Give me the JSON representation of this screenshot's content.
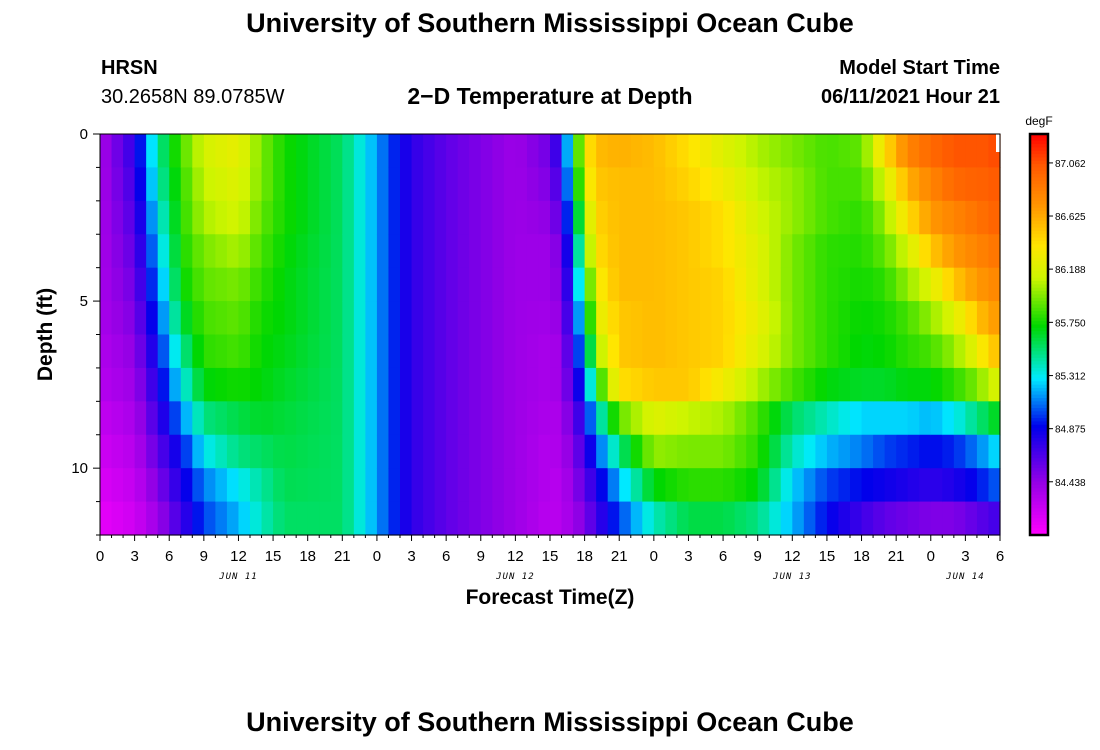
{
  "header": {
    "top_title": "University of Southern Mississippi Ocean Cube",
    "station": "HRSN",
    "coords": "30.2658N  89.0785W",
    "model_start_label": "Model Start Time",
    "model_start_value": "06/11/2021 Hour 21"
  },
  "footer": {
    "bottom_title": "University of Southern Mississippi Ocean Cube"
  },
  "chart_data": {
    "type": "heatmap",
    "title": "2−D Temperature at Depth",
    "xlabel": "Forecast Time(Z)",
    "ylabel": "Depth (ft)",
    "colorbar_unit": "degF",
    "colorbar_ticks": [
      "84.438",
      "84.875",
      "85.312",
      "85.750",
      "86.188",
      "86.625",
      "87.062"
    ],
    "zlim": [
      84.0,
      87.3
    ],
    "x_start": "06/11/2021 00Z",
    "x_end": "06/14/2021 06Z",
    "x_step_hours": 1,
    "x_tick_labels": [
      "0",
      "3",
      "6",
      "9",
      "12",
      "15",
      "18",
      "21",
      "0",
      "3",
      "6",
      "9",
      "12",
      "15",
      "18",
      "21",
      "0",
      "3",
      "6",
      "9",
      "12",
      "15",
      "18",
      "21",
      "0",
      "3",
      "6"
    ],
    "date_labels": [
      {
        "label": "JUN 11",
        "hour": 12
      },
      {
        "label": "JUN 12",
        "hour": 36
      },
      {
        "label": "JUN 13",
        "hour": 60
      },
      {
        "label": "JUN 14",
        "hour": 75
      }
    ],
    "y_ticks": [
      0,
      5,
      10
    ],
    "ylim": [
      0,
      12
    ],
    "depth_levels_ft": [
      0.5,
      1.5,
      2.5,
      3.5,
      4.5,
      5.5,
      6.5,
      7.5,
      8.5,
      9.5,
      10.5,
      11.5
    ],
    "profiles": [
      {
        "hour": 0,
        "temps": [
          84.35,
          84.35,
          84.35,
          84.35,
          84.35,
          84.35,
          84.32,
          84.3,
          84.25,
          84.2,
          84.15,
          84.1
        ]
      },
      {
        "hour": 3,
        "temps": [
          84.75,
          84.7,
          84.65,
          84.6,
          84.55,
          84.5,
          84.45,
          84.4,
          84.35,
          84.3,
          84.25,
          84.2
        ]
      },
      {
        "hour": 5,
        "temps": [
          85.45,
          85.4,
          85.3,
          85.2,
          85.1,
          85.0,
          84.9,
          84.8,
          84.7,
          84.6,
          84.5,
          84.4
        ]
      },
      {
        "hour": 7,
        "temps": [
          85.85,
          85.8,
          85.78,
          85.75,
          85.7,
          85.6,
          85.45,
          85.3,
          85.1,
          84.9,
          84.8,
          84.7
        ]
      },
      {
        "hour": 9,
        "temps": [
          86.15,
          86.1,
          86.05,
          85.95,
          85.9,
          85.85,
          85.8,
          85.7,
          85.5,
          85.3,
          85.1,
          85.0
        ]
      },
      {
        "hour": 12,
        "temps": [
          86.25,
          86.2,
          86.15,
          86.05,
          85.95,
          85.9,
          85.85,
          85.75,
          85.6,
          85.5,
          85.3,
          85.2
        ]
      },
      {
        "hour": 14,
        "temps": [
          85.95,
          85.95,
          85.9,
          85.85,
          85.8,
          85.75,
          85.72,
          85.7,
          85.65,
          85.55,
          85.45,
          85.4
        ]
      },
      {
        "hour": 16,
        "temps": [
          85.75,
          85.75,
          85.75,
          85.72,
          85.7,
          85.7,
          85.68,
          85.65,
          85.62,
          85.6,
          85.58,
          85.55
        ]
      },
      {
        "hour": 21,
        "temps": [
          85.55,
          85.55,
          85.55,
          85.55,
          85.55,
          85.55,
          85.55,
          85.55,
          85.55,
          85.55,
          85.55,
          85.55
        ]
      },
      {
        "hour": 24,
        "temps": [
          85.15,
          85.15,
          85.15,
          85.15,
          85.15,
          85.15,
          85.15,
          85.15,
          85.15,
          85.15,
          85.15,
          85.15
        ]
      },
      {
        "hour": 27,
        "temps": [
          84.75,
          84.75,
          84.75,
          84.75,
          84.75,
          84.75,
          84.75,
          84.75,
          84.75,
          84.75,
          84.75,
          84.75
        ]
      },
      {
        "hour": 30,
        "temps": [
          84.6,
          84.6,
          84.6,
          84.6,
          84.6,
          84.6,
          84.6,
          84.6,
          84.6,
          84.6,
          84.6,
          84.6
        ]
      },
      {
        "hour": 33,
        "temps": [
          84.5,
          84.5,
          84.5,
          84.5,
          84.5,
          84.5,
          84.5,
          84.5,
          84.5,
          84.5,
          84.5,
          84.5
        ]
      },
      {
        "hour": 36,
        "temps": [
          84.4,
          84.4,
          84.4,
          84.4,
          84.4,
          84.4,
          84.4,
          84.4,
          84.4,
          84.4,
          84.4,
          84.4
        ]
      },
      {
        "hour": 39,
        "temps": [
          84.55,
          84.5,
          84.45,
          84.4,
          84.4,
          84.38,
          84.35,
          84.35,
          84.33,
          84.3,
          84.3,
          84.28
        ]
      },
      {
        "hour": 40,
        "temps": [
          84.85,
          84.75,
          84.65,
          84.55,
          84.5,
          84.45,
          84.4,
          84.4,
          84.35,
          84.35,
          84.3,
          84.3
        ]
      },
      {
        "hour": 41,
        "temps": [
          85.5,
          85.4,
          85.25,
          85.1,
          85.0,
          84.9,
          84.8,
          84.7,
          84.6,
          84.5,
          84.45,
          84.4
        ]
      },
      {
        "hour": 42,
        "temps": [
          86.3,
          86.2,
          86.0,
          85.8,
          85.6,
          85.4,
          85.2,
          85.0,
          84.8,
          84.7,
          84.6,
          84.5
        ]
      },
      {
        "hour": 43,
        "temps": [
          86.55,
          86.5,
          86.45,
          86.4,
          86.3,
          86.2,
          86.0,
          85.7,
          85.3,
          85.0,
          84.8,
          84.7
        ]
      },
      {
        "hour": 45,
        "temps": [
          86.6,
          86.55,
          86.55,
          86.55,
          86.55,
          86.5,
          86.5,
          86.4,
          85.9,
          85.5,
          85.2,
          85.0
        ]
      },
      {
        "hour": 48,
        "temps": [
          86.55,
          86.55,
          86.55,
          86.55,
          86.55,
          86.55,
          86.55,
          86.5,
          86.2,
          86.0,
          85.7,
          85.4
        ]
      },
      {
        "hour": 51,
        "temps": [
          86.4,
          86.45,
          86.5,
          86.5,
          86.5,
          86.5,
          86.5,
          86.5,
          86.1,
          85.95,
          85.8,
          85.6
        ]
      },
      {
        "hour": 54,
        "temps": [
          86.2,
          86.3,
          86.4,
          86.4,
          86.45,
          86.45,
          86.45,
          86.3,
          86.05,
          85.95,
          85.8,
          85.6
        ]
      },
      {
        "hour": 57,
        "temps": [
          86.05,
          86.1,
          86.15,
          86.2,
          86.2,
          86.25,
          86.2,
          86.05,
          85.85,
          85.8,
          85.7,
          85.5
        ]
      },
      {
        "hour": 60,
        "temps": [
          85.95,
          86.0,
          86.0,
          85.95,
          85.95,
          85.95,
          85.95,
          85.85,
          85.55,
          85.4,
          85.25,
          85.2
        ]
      },
      {
        "hour": 63,
        "temps": [
          85.85,
          85.85,
          85.85,
          85.8,
          85.8,
          85.8,
          85.8,
          85.7,
          85.4,
          85.2,
          85.0,
          84.9
        ]
      },
      {
        "hour": 66,
        "temps": [
          85.9,
          85.85,
          85.8,
          85.78,
          85.75,
          85.72,
          85.7,
          85.65,
          85.25,
          85.1,
          84.9,
          84.7
        ]
      },
      {
        "hour": 68,
        "temps": [
          86.4,
          86.15,
          86.0,
          85.9,
          85.8,
          85.75,
          85.72,
          85.65,
          85.25,
          85.0,
          84.85,
          84.6
        ]
      },
      {
        "hour": 70,
        "temps": [
          86.8,
          86.6,
          86.4,
          86.15,
          86.0,
          85.85,
          85.8,
          85.7,
          85.25,
          84.95,
          84.8,
          84.55
        ]
      },
      {
        "hour": 72,
        "temps": [
          86.95,
          86.8,
          86.7,
          86.5,
          86.2,
          86.0,
          85.85,
          85.7,
          85.2,
          84.9,
          84.75,
          84.5
        ]
      },
      {
        "hour": 74,
        "temps": [
          87.05,
          86.95,
          86.8,
          86.7,
          86.5,
          86.2,
          86.0,
          85.8,
          85.3,
          84.95,
          84.8,
          84.5
        ]
      },
      {
        "hour": 76,
        "temps": [
          87.05,
          87.0,
          86.9,
          86.8,
          86.7,
          86.5,
          86.25,
          85.95,
          85.5,
          85.1,
          84.9,
          84.6
        ]
      },
      {
        "hour": 77,
        "temps": [
          87.05,
          87.0,
          86.95,
          86.85,
          86.75,
          86.65,
          86.45,
          86.1,
          85.6,
          85.2,
          85.0,
          84.65
        ]
      },
      {
        "hour": 78,
        "temps": [
          87.1,
          87.05,
          87.0,
          86.9,
          86.8,
          86.7,
          86.55,
          86.2,
          85.7,
          85.3,
          85.05,
          84.7
        ]
      }
    ]
  }
}
